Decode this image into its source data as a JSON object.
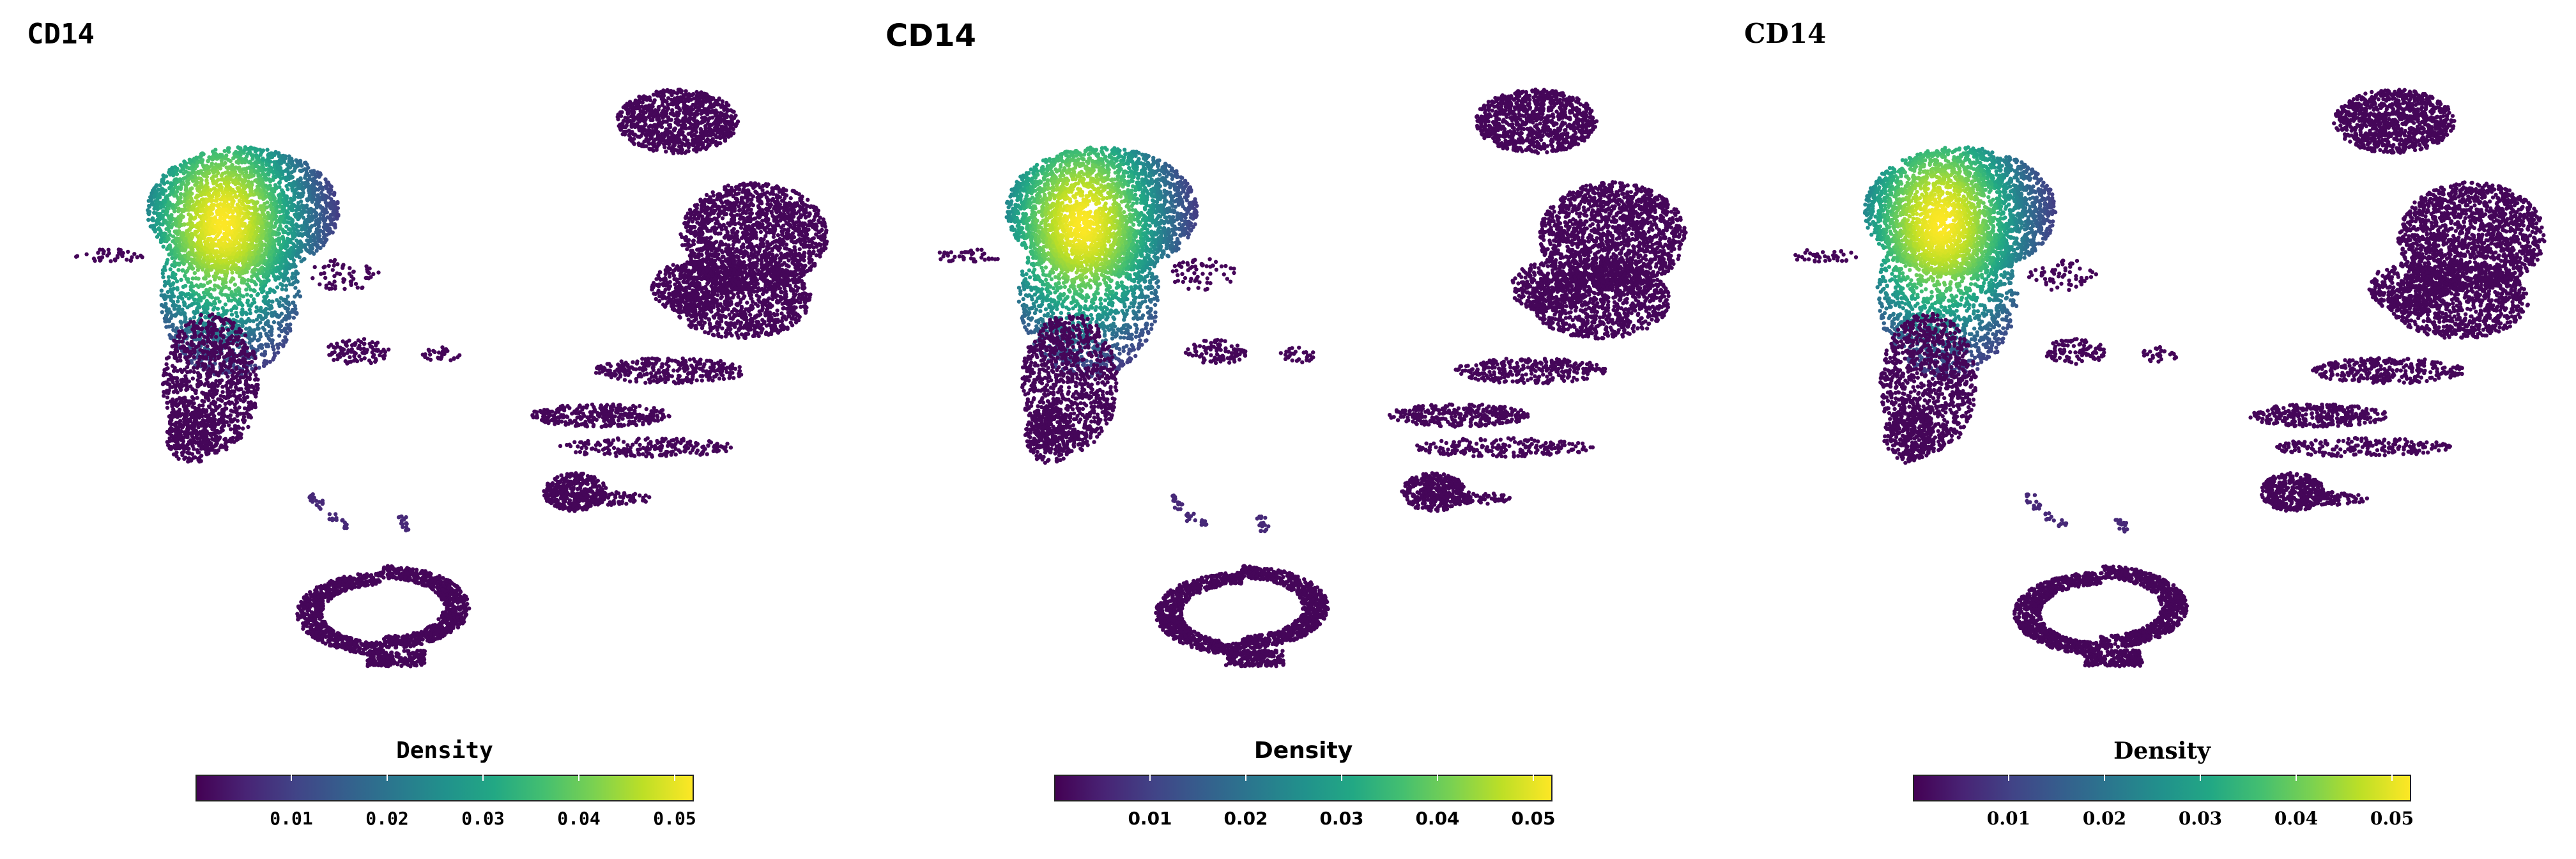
{
  "chart_data": [
    {
      "type": "scatter",
      "title": "CD14",
      "colorbar_label": "Density",
      "colormap": "viridis",
      "color_range": [
        0.0,
        0.052
      ],
      "ticks": [
        "0.01",
        "0.02",
        "0.03",
        "0.04",
        "0.05"
      ],
      "tick_values": [
        0.01,
        0.02,
        0.03,
        0.04,
        0.05
      ],
      "series": [
        {
          "values": [
            0.052,
            0.04,
            0.03,
            0.02,
            0.012,
            0.005,
            0.002,
            0.001,
            0.001,
            0.001,
            0.001,
            0.001
          ]
        }
      ]
    },
    {
      "type": "scatter",
      "title": "CD14",
      "colorbar_label": "Density",
      "colormap": "viridis",
      "color_range": [
        0.0,
        0.052
      ],
      "ticks": [
        "0.01",
        "0.02",
        "0.03",
        "0.04",
        "0.05"
      ],
      "tick_values": [
        0.01,
        0.02,
        0.03,
        0.04,
        0.05
      ],
      "series": [
        {
          "values": [
            0.052,
            0.04,
            0.03,
            0.02,
            0.012,
            0.005,
            0.002,
            0.001,
            0.001,
            0.001,
            0.001,
            0.001
          ]
        }
      ]
    },
    {
      "type": "scatter",
      "title": "CD14",
      "colorbar_label": "Density",
      "colormap": "viridis",
      "color_range": [
        0.0,
        0.052
      ],
      "ticks": [
        "0.01",
        "0.02",
        "0.03",
        "0.04",
        "0.05"
      ],
      "tick_values": [
        0.01,
        0.02,
        0.03,
        0.04,
        0.05
      ],
      "series": [
        {
          "values": [
            0.052,
            0.04,
            0.03,
            0.02,
            0.012,
            0.005,
            0.002,
            0.001,
            0.001,
            0.001,
            0.001,
            0.001
          ]
        }
      ]
    }
  ]
}
